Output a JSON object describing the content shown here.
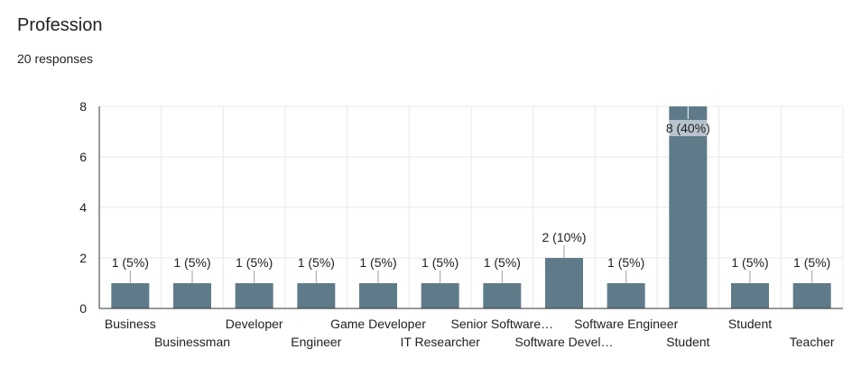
{
  "question": {
    "title": "Profession",
    "responses": "20 responses"
  },
  "colors": {
    "bar": "#5f7b89",
    "grid": "#e8e8e8",
    "axis": "#333333",
    "text": "#202124"
  },
  "chart_data": {
    "type": "bar",
    "title": "",
    "xlabel": "",
    "ylabel": "",
    "ylim": [
      0,
      8
    ],
    "yticks": [
      0,
      2,
      4,
      6,
      8
    ],
    "grid": true,
    "categories": [
      "Business",
      "Businessman",
      "Developer",
      "Engineer",
      "Game Developer",
      "IT Researcher",
      "Senior Software…",
      "Software Devel…",
      "Software Engineer",
      "Student",
      "Student",
      "Teacher"
    ],
    "values": [
      1,
      1,
      1,
      1,
      1,
      1,
      1,
      2,
      1,
      8,
      1,
      1
    ],
    "data_labels": [
      "1 (5%)",
      "1 (5%)",
      "1 (5%)",
      "1 (5%)",
      "1 (5%)",
      "1 (5%)",
      "1 (5%)",
      "2 (10%)",
      "1 (5%)",
      "8 (40%)",
      "1 (5%)",
      "1 (5%)"
    ]
  }
}
